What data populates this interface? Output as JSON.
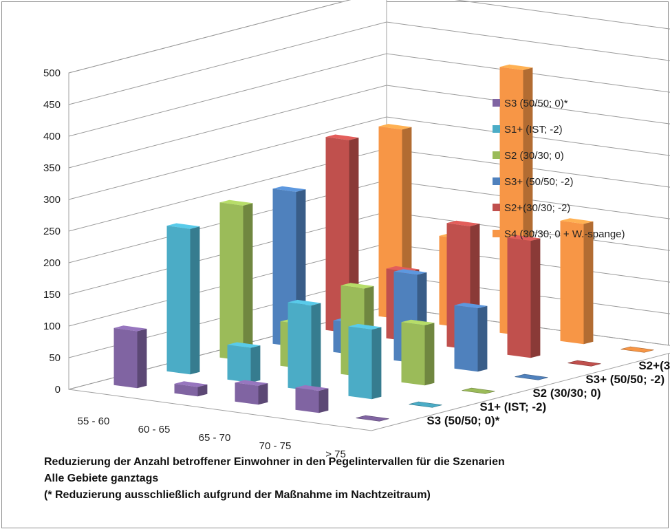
{
  "chart_data": {
    "type": "bar",
    "variant": "3d-clustered-columns",
    "categories": [
      "55 - 60",
      "60 - 65",
      "65 - 70",
      "70 - 75",
      "> 75"
    ],
    "ylim": [
      0,
      500
    ],
    "yticks": [
      0,
      50,
      100,
      150,
      200,
      250,
      300,
      350,
      400,
      450,
      500
    ],
    "grid": true,
    "legend_position": "right",
    "series": [
      {
        "name": "S3 (50/50; 0)*",
        "color": "#8064a2",
        "values": [
          90,
          15,
          30,
          35,
          0
        ]
      },
      {
        "name": "S1+ (IST; -2)",
        "color": "#4bacc6",
        "values": [
          230,
          55,
          135,
          110,
          0
        ]
      },
      {
        "name": "S2 (30/30; 0)",
        "color": "#9bbb59",
        "values": [
          245,
          70,
          140,
          95,
          0
        ]
      },
      {
        "name": "S3+ (50/50; -2)",
        "color": "#4f81bd",
        "values": [
          245,
          50,
          140,
          100,
          0
        ]
      },
      {
        "name": "S2+(30/30; -2)",
        "color": "#c0504d",
        "values": [
          305,
          110,
          195,
          185,
          0
        ]
      },
      {
        "name": "S4 (30/30; 0 + W.-spange)",
        "color": "#f79646",
        "values": [
          300,
          140,
          420,
          190,
          0
        ]
      }
    ],
    "caption": [
      "Reduzierung der Anzahl betroffener  Einwohner in den Pegelintervallen für die Szenarien",
      "Alle Gebiete ganztags",
      "(* Reduzierung ausschließlich aufgrund der Maßnahme im Nachtzeitraum)"
    ]
  }
}
